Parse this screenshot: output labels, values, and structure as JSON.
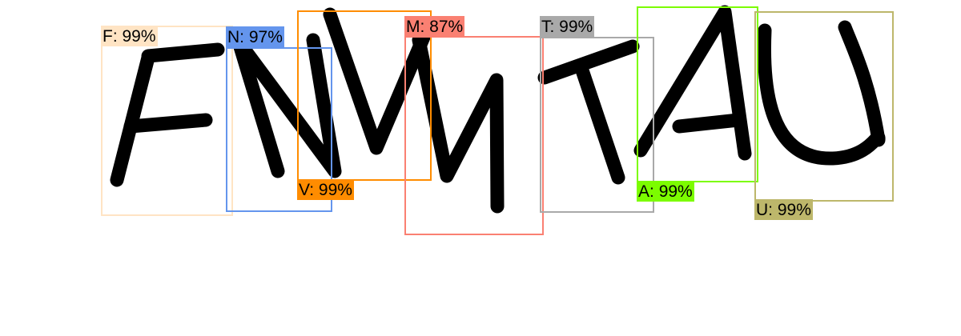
{
  "detections": [
    {
      "letter": "F",
      "confidence": "99%",
      "color": "#FFE4C4"
    },
    {
      "letter": "N",
      "confidence": "97%",
      "color": "#6495ED"
    },
    {
      "letter": "V",
      "confidence": "99%",
      "color": "#FF8C00"
    },
    {
      "letter": "M",
      "confidence": "87%",
      "color": "#FA8072"
    },
    {
      "letter": "T",
      "confidence": "99%",
      "color": "#A9A9A9"
    },
    {
      "letter": "A",
      "confidence": "99%",
      "color": "#7CFC00"
    },
    {
      "letter": "U",
      "confidence": "99%",
      "color": "#BDB76B"
    }
  ]
}
